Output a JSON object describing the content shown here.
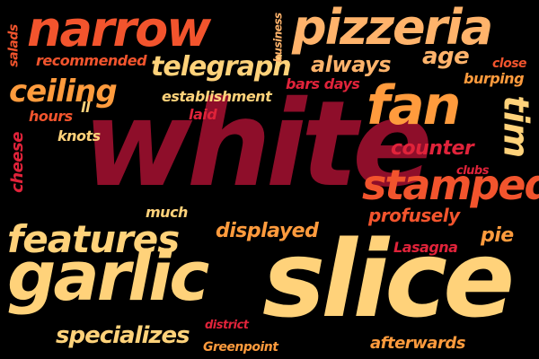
{
  "colors": {
    "background": "#000000",
    "yellow": "#FFD27A",
    "orange": "#FF9B3D",
    "red": "#F2542D",
    "crimson": "#E0233A",
    "maroon": "#8E0E2A",
    "peach": "#FFB36B"
  },
  "words": {
    "white": "white",
    "slice": "slice",
    "garlic": "garlic",
    "narrow": "narrow",
    "pizzeria": "pizzeria",
    "fan": "fan",
    "stamped": "stamped",
    "features": "features",
    "ceiling": "ceiling",
    "telegraph": "telegraph",
    "specializes": "specializes",
    "displayed": "displayed",
    "always": "always",
    "age": "age",
    "counter": "counter",
    "tim": "tim",
    "profusely": "profusely",
    "pie": "pie",
    "lasagna": "Lasagna",
    "afterwards": "afterwards",
    "recommended": "recommended",
    "establishment": "establishment",
    "laid": "laid",
    "bars_days": "bars days",
    "burping": "burping",
    "close": "close",
    "hours": "hours",
    "ll": "ll",
    "knots": "knots",
    "cheese": "cheese",
    "salads": "salads",
    "business": "business",
    "clubs": "clubs",
    "much": "much",
    "district": "district",
    "greenpoint": "Greenpoint"
  }
}
